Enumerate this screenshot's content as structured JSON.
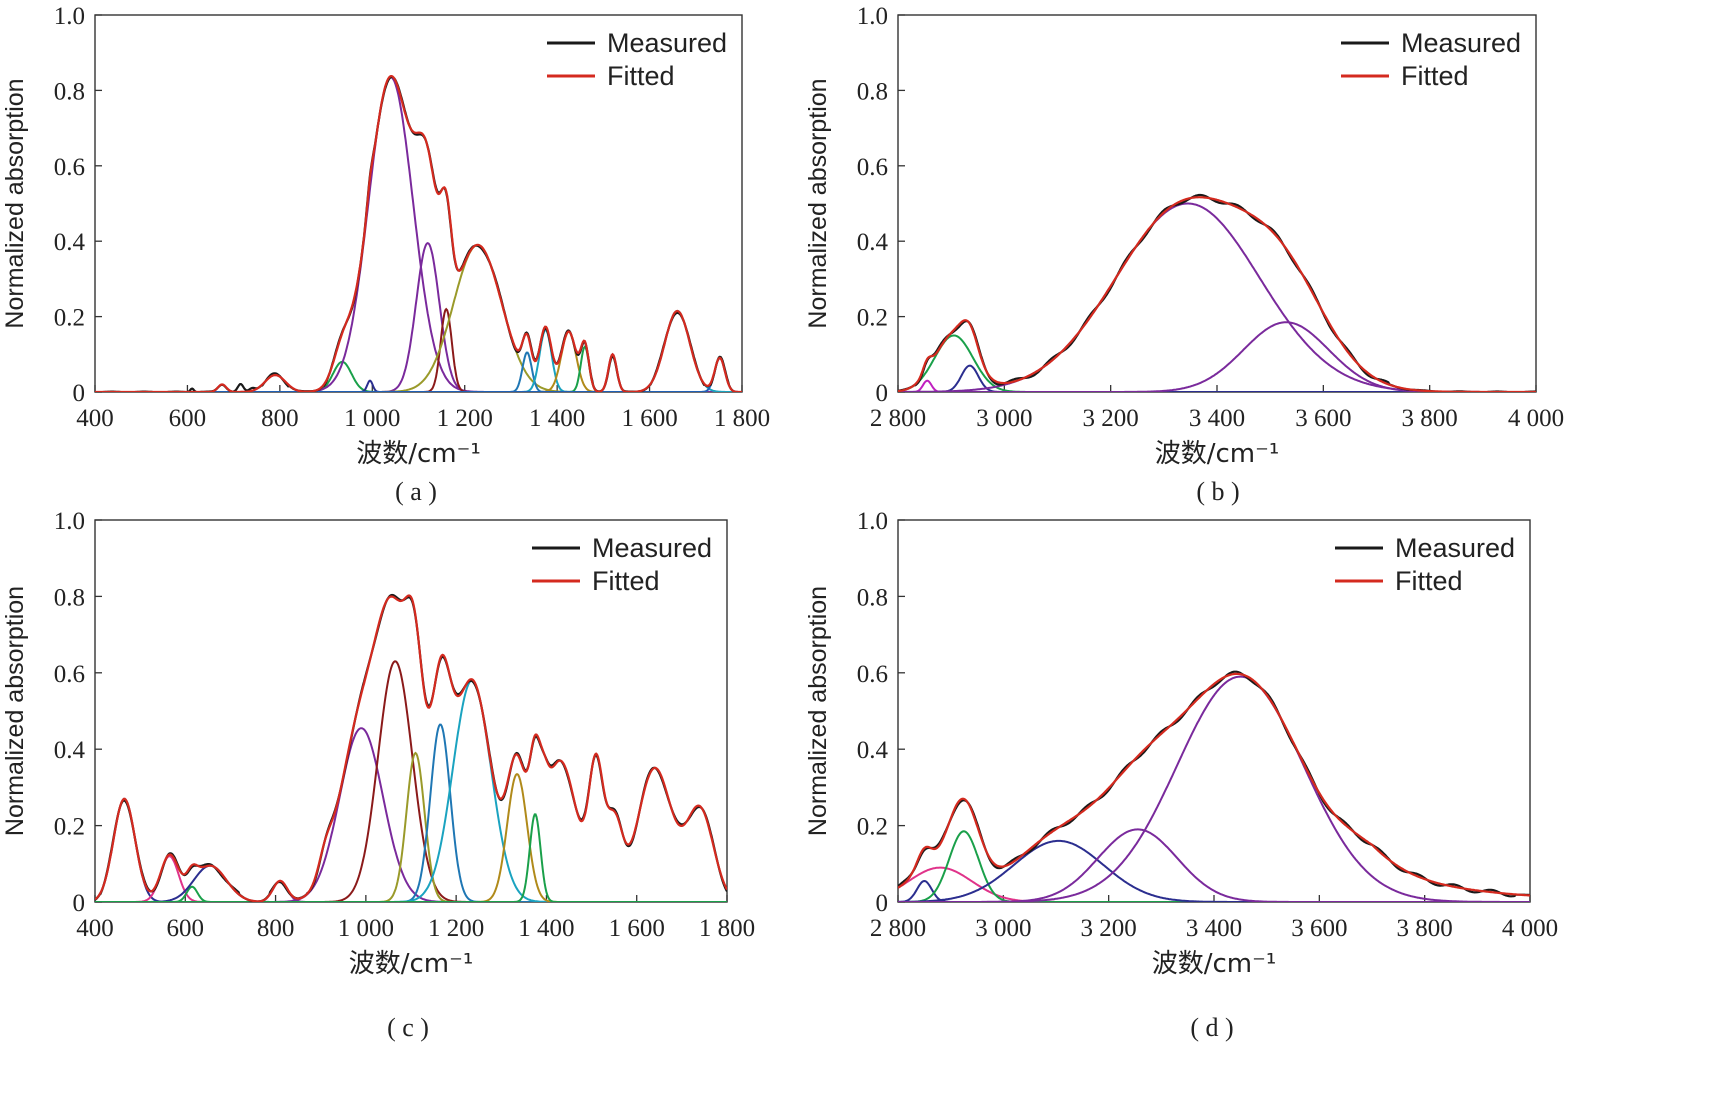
{
  "chart_data": [
    {
      "type": "line",
      "caption": "( a )",
      "xlabel": "波数/cm⁻¹",
      "ylabel": "Normalized absorption",
      "xlim": [
        400,
        1800
      ],
      "ylim": [
        0,
        1
      ],
      "xticks": [
        400,
        600,
        800,
        1000,
        1200,
        1400,
        1600,
        1800
      ],
      "xtick_labels": [
        "400",
        "600",
        "800",
        "1 000",
        "1 200",
        "1 400",
        "1 600",
        "1 800"
      ],
      "yticks": [
        0,
        0.2,
        0.4,
        0.6,
        0.8,
        1.0
      ],
      "ytick_labels": [
        "0",
        "0.2",
        "0.4",
        "0.6",
        "0.8",
        "1.0"
      ],
      "legend": [
        {
          "label": "Measured",
          "color": "#1a1a1a"
        },
        {
          "label": "Fitted",
          "color": "#d42a1f"
        }
      ],
      "legend_position": "top-right",
      "components": [
        {
          "center": 675,
          "height": 0.02,
          "width": 9,
          "color": "#2b2e8f"
        },
        {
          "center": 790,
          "height": 0.045,
          "width": 22,
          "color": "#e0338a"
        },
        {
          "center": 935,
          "height": 0.08,
          "width": 20,
          "color": "#1aa04a"
        },
        {
          "center": 995,
          "height": 0.03,
          "width": 6,
          "color": "#2b2e8f"
        },
        {
          "center": 1040,
          "height": 0.835,
          "width": 48,
          "color": "#7a2a9c"
        },
        {
          "center": 1120,
          "height": 0.395,
          "width": 25,
          "color": "#7a2a9c"
        },
        {
          "center": 1160,
          "height": 0.22,
          "width": 12,
          "color": "#8b1a1a"
        },
        {
          "center": 1228,
          "height": 0.39,
          "width": 52,
          "color": "#9a9a2a"
        },
        {
          "center": 1335,
          "height": 0.105,
          "width": 10,
          "color": "#1f77b4"
        },
        {
          "center": 1375,
          "height": 0.165,
          "width": 13,
          "color": "#1aa3c0"
        },
        {
          "center": 1425,
          "height": 0.16,
          "width": 16,
          "color": "#b08a1a"
        },
        {
          "center": 1460,
          "height": 0.12,
          "width": 9,
          "color": "#1aa04a"
        },
        {
          "center": 1520,
          "height": 0.1,
          "width": 9,
          "color": "#7a2a9c"
        },
        {
          "center": 1660,
          "height": 0.215,
          "width": 27,
          "color": "#1aa3c0"
        },
        {
          "center": 1752,
          "height": 0.09,
          "width": 11,
          "color": "#1f5fb4"
        }
      ],
      "noise": [
        {
          "center": 610,
          "height": 0.01,
          "width": 4
        },
        {
          "center": 715,
          "height": 0.02,
          "width": 6
        },
        {
          "center": 740,
          "height": 0.008,
          "width": 6
        }
      ],
      "measured_offset": 0.005
    },
    {
      "type": "line",
      "caption": "( b )",
      "xlabel": "波数/cm⁻¹",
      "ylabel": "Normalized absorption",
      "xlim": [
        2800,
        4000
      ],
      "ylim": [
        0,
        1
      ],
      "xticks": [
        2800,
        3000,
        3200,
        3400,
        3600,
        3800,
        4000
      ],
      "xtick_labels": [
        "2 800",
        "3 000",
        "3 200",
        "3 400",
        "3 600",
        "3 800",
        "4 000"
      ],
      "yticks": [
        0,
        0.2,
        0.4,
        0.6,
        0.8,
        1.0
      ],
      "ytick_labels": [
        "0",
        "0.2",
        "0.4",
        "0.6",
        "0.8",
        "1.0"
      ],
      "legend": [
        {
          "label": "Measured",
          "color": "#1a1a1a"
        },
        {
          "label": "Fitted",
          "color": "#d42a1f"
        }
      ],
      "legend_position": "top-right",
      "components": [
        {
          "center": 2855,
          "height": 0.03,
          "width": 8,
          "color": "#c020c0"
        },
        {
          "center": 2905,
          "height": 0.15,
          "width": 36,
          "color": "#1aa04a"
        },
        {
          "center": 2935,
          "height": 0.07,
          "width": 16,
          "color": "#2b2e8f"
        },
        {
          "center": 3345,
          "height": 0.5,
          "width": 135,
          "color": "#7a2a9c"
        },
        {
          "center": 3530,
          "height": 0.185,
          "width": 80,
          "color": "#7a2a9c"
        }
      ],
      "noise": [],
      "measured_offset": 0.006
    },
    {
      "type": "line",
      "caption": "( c )",
      "xlabel": "波数/cm⁻¹",
      "ylabel": "Normalized absorption",
      "xlim": [
        400,
        1800
      ],
      "ylim": [
        0,
        1
      ],
      "xticks": [
        400,
        600,
        800,
        1000,
        1200,
        1400,
        1600,
        1800
      ],
      "xtick_labels": [
        "400",
        "600",
        "800",
        "1 000",
        "1 200",
        "1 400",
        "1 600",
        "1 800"
      ],
      "yticks": [
        0,
        0.2,
        0.4,
        0.6,
        0.8,
        1.0
      ],
      "ytick_labels": [
        "0",
        "0.2",
        "0.4",
        "0.6",
        "0.8",
        "1.0"
      ],
      "legend": [
        {
          "label": "Measured",
          "color": "#1a1a1a"
        },
        {
          "label": "Fitted",
          "color": "#d42a1f"
        }
      ],
      "legend_position": "top-right",
      "components": [
        {
          "center": 465,
          "height": 0.27,
          "width": 24,
          "color": "#2b2e8f"
        },
        {
          "center": 565,
          "height": 0.12,
          "width": 20,
          "color": "#e0338a"
        },
        {
          "center": 615,
          "height": 0.04,
          "width": 12,
          "color": "#1aa04a"
        },
        {
          "center": 655,
          "height": 0.095,
          "width": 36,
          "color": "#2b2e8f"
        },
        {
          "center": 810,
          "height": 0.055,
          "width": 16,
          "color": "#7a2a9c"
        },
        {
          "center": 990,
          "height": 0.455,
          "width": 48,
          "color": "#7a2a9c"
        },
        {
          "center": 1065,
          "height": 0.63,
          "width": 38,
          "color": "#8b1a1a"
        },
        {
          "center": 1110,
          "height": 0.39,
          "width": 20,
          "color": "#9a9a2a"
        },
        {
          "center": 1165,
          "height": 0.465,
          "width": 22,
          "color": "#1f77b4"
        },
        {
          "center": 1235,
          "height": 0.58,
          "width": 42,
          "color": "#1aa3c0"
        },
        {
          "center": 1335,
          "height": 0.335,
          "width": 22,
          "color": "#b08a1a"
        },
        {
          "center": 1375,
          "height": 0.23,
          "width": 12,
          "color": "#1aa04a"
        }
      ],
      "extra": [
        {
          "center": 910,
          "height": 0.05,
          "width": 15
        },
        {
          "center": 1430,
          "height": 0.37,
          "width": 38
        },
        {
          "center": 1510,
          "height": 0.33,
          "width": 16
        },
        {
          "center": 1550,
          "height": 0.2,
          "width": 18
        },
        {
          "center": 1640,
          "height": 0.35,
          "width": 38
        },
        {
          "center": 1740,
          "height": 0.24,
          "width": 30
        },
        {
          "center": 1395,
          "height": 0.08,
          "width": 10
        }
      ],
      "measured_offset": 0.005
    },
    {
      "type": "line",
      "caption": "( d )",
      "xlabel": "波数/cm⁻¹",
      "ylabel": "Normalized absorption",
      "xlim": [
        2800,
        4000
      ],
      "ylim": [
        0,
        1
      ],
      "xticks": [
        2800,
        3000,
        3200,
        3400,
        3600,
        3800,
        4000
      ],
      "xtick_labels": [
        "2 800",
        "3 000",
        "3 200",
        "3 400",
        "3 600",
        "3 800",
        "4 000"
      ],
      "yticks": [
        0,
        0.2,
        0.4,
        0.6,
        0.8,
        1.0
      ],
      "ytick_labels": [
        "0",
        "0.2",
        "0.4",
        "0.6",
        "0.8",
        "1.0"
      ],
      "legend": [
        {
          "label": "Measured",
          "color": "#1a1a1a"
        },
        {
          "label": "Fitted",
          "color": "#d42a1f"
        }
      ],
      "legend_position": "top-right",
      "components": [
        {
          "center": 2850,
          "height": 0.055,
          "width": 14,
          "color": "#2b2e8f"
        },
        {
          "center": 2880,
          "height": 0.09,
          "width": 60,
          "color": "#e0338a"
        },
        {
          "center": 2925,
          "height": 0.185,
          "width": 28,
          "color": "#1aa04a"
        },
        {
          "center": 3105,
          "height": 0.16,
          "width": 85,
          "color": "#2b2e8f"
        },
        {
          "center": 3255,
          "height": 0.19,
          "width": 75,
          "color": "#7a2a9c"
        },
        {
          "center": 3450,
          "height": 0.59,
          "width": 120,
          "color": "#7a2a9c"
        }
      ],
      "tail": {
        "start": 3700,
        "height": 0.09,
        "decay": 180
      },
      "measured_offset": 0.006
    }
  ]
}
